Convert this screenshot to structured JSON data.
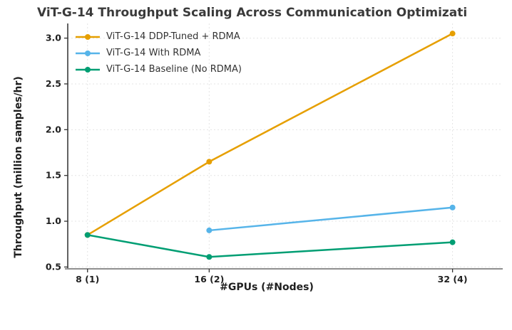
{
  "chart_data": {
    "type": "line",
    "title": "ViT-G-14 Throughput Scaling Across Communication Optimizati",
    "xlabel": "#GPUs (#Nodes)",
    "ylabel": "Throughput (million samples/hr)",
    "xlim": [
      6.7,
      35.3
    ],
    "ylim": [
      0.48,
      3.16
    ],
    "grid": true,
    "legend_position": "upper-left",
    "x_ticks": [
      {
        "value": 8,
        "label": "8 (1)"
      },
      {
        "value": 16,
        "label": "16 (2)"
      },
      {
        "value": 32,
        "label": "32 (4)"
      }
    ],
    "y_ticks": [
      {
        "value": 0.5,
        "label": "0.5"
      },
      {
        "value": 1.0,
        "label": "1.0"
      },
      {
        "value": 1.5,
        "label": "1.5"
      },
      {
        "value": 2.0,
        "label": "2.0"
      },
      {
        "value": 2.5,
        "label": "2.5"
      },
      {
        "value": 3.0,
        "label": "3.0"
      }
    ],
    "series": [
      {
        "name": "ViT-G-14 DDP-Tuned + RDMA",
        "color": "#E69F00",
        "x": [
          8,
          16,
          32
        ],
        "y": [
          0.85,
          1.65,
          3.05
        ]
      },
      {
        "name": "ViT-G-14 With RDMA",
        "color": "#56B4E9",
        "x": [
          16,
          32
        ],
        "y": [
          0.9,
          1.15
        ]
      },
      {
        "name": "ViT-G-14 Baseline (No RDMA)",
        "color": "#009E73",
        "x": [
          8,
          16,
          32
        ],
        "y": [
          0.85,
          0.61,
          0.77
        ]
      }
    ],
    "colors": {
      "grid": "#e4e4e4",
      "left_spine": "#2f2f2f",
      "bottom_spine": "#8f8f8f",
      "tick": "#333333",
      "tick_label": "#1f1f1f",
      "title": "#3a3a3a"
    }
  }
}
